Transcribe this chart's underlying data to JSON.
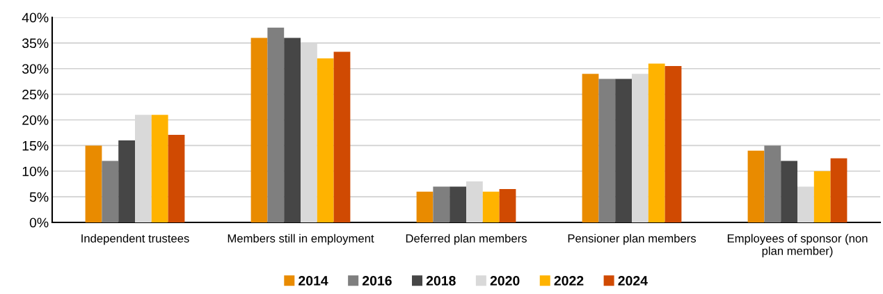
{
  "chart_data": {
    "type": "bar",
    "categories": [
      "Independent trustees",
      "Members still in employment",
      "Deferred plan members",
      "Pensioner plan members",
      "Employees of sponsor (non\nplan member)"
    ],
    "series": [
      {
        "name": "2014",
        "color": "#e98b00",
        "values": [
          15,
          36,
          6,
          29,
          14
        ]
      },
      {
        "name": "2016",
        "color": "#7f7f7f",
        "values": [
          12,
          38,
          7,
          28,
          15
        ]
      },
      {
        "name": "2018",
        "color": "#464646",
        "values": [
          16,
          36,
          7,
          28,
          12
        ]
      },
      {
        "name": "2020",
        "color": "#d9d9d9",
        "values": [
          21,
          35,
          8,
          29,
          7
        ]
      },
      {
        "name": "2022",
        "color": "#ffb300",
        "values": [
          21,
          32,
          6,
          31,
          10
        ]
      },
      {
        "name": "2024",
        "color": "#d04a02",
        "values": [
          17.1,
          33.3,
          6.5,
          30.5,
          12.5
        ]
      }
    ],
    "ylim": [
      0,
      40
    ],
    "yticks": [
      {
        "value": 0,
        "label": "0%"
      },
      {
        "value": 5,
        "label": "5%"
      },
      {
        "value": 10,
        "label": "10%"
      },
      {
        "value": 15,
        "label": "15%"
      },
      {
        "value": 20,
        "label": "20%"
      },
      {
        "value": 25,
        "label": "25%"
      },
      {
        "value": 30,
        "label": "30%"
      },
      {
        "value": 35,
        "label": "35%"
      },
      {
        "value": 40,
        "label": "40%"
      }
    ],
    "grid": "y",
    "legend": "bottom"
  }
}
